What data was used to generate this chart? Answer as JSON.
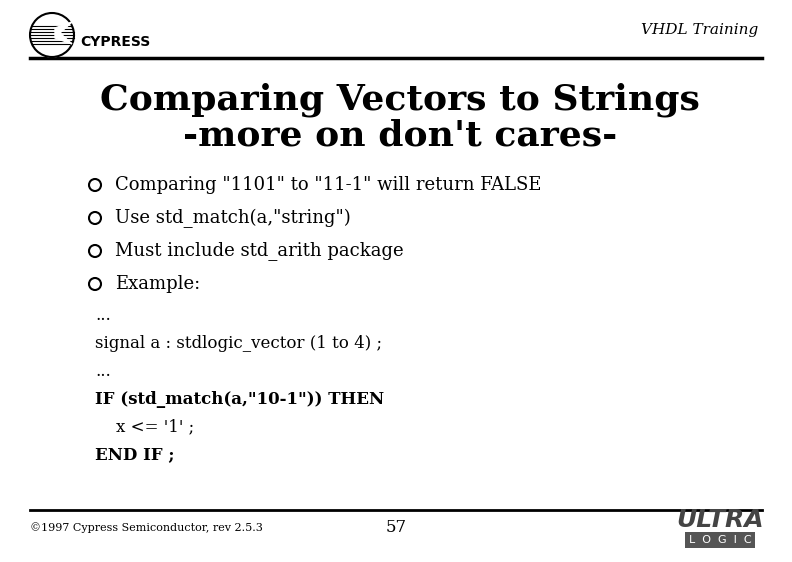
{
  "title_line1": "Comparing Vectors to Strings",
  "title_line2": "-more on don't cares-",
  "header_right": "VHDL Training",
  "bullet_items": [
    "Comparing \"1101\" to \"11-1\" will return FALSE",
    "Use std_match(a,\"string\")",
    "Must include std_arith package",
    "Example:"
  ],
  "code_lines": [
    "...",
    "signal a : stdlogic_vector (1 to 4) ;",
    "...",
    "IF (std_match(a,\"10-1\")) THEN",
    "    x <= '1' ;",
    "END IF ;"
  ],
  "code_bold_lines": [
    3,
    5
  ],
  "footer_left": "©1997 Cypress Semiconductor, rev 2.5.3",
  "footer_center": "57",
  "bg_color": "#ffffff",
  "title_color": "#000000",
  "text_color": "#000000",
  "header_line_color": "#000000",
  "footer_line_color": "#000000"
}
